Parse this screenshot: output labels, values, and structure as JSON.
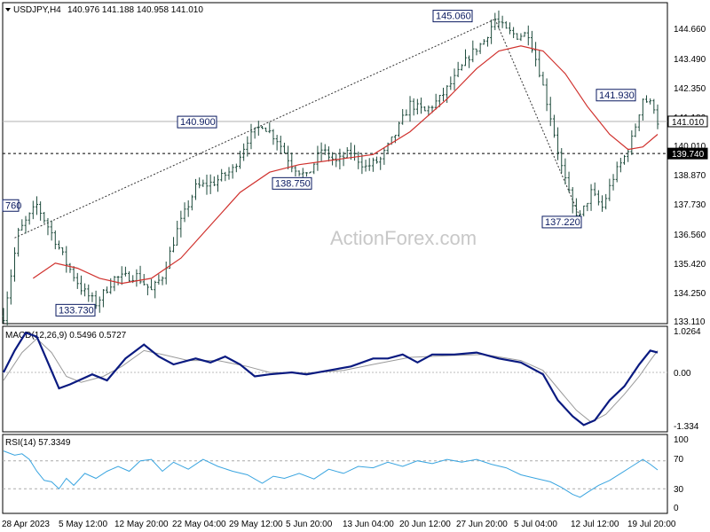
{
  "header": {
    "symbol": "USDJPY,H4",
    "ohlc": "140.976 141.188 140.958 141.010"
  },
  "watermark": "ActionForex.com",
  "colors": {
    "candle": "#1e4b3c",
    "ma": "#d0312d",
    "macd_main": "#0a1a80",
    "macd_signal": "#9a9a9a",
    "rsi": "#3aa5e0",
    "trend": "#333333",
    "label_border": "#0a1a60"
  },
  "chart_data": [
    {
      "type": "candlestick",
      "title": "USDJPY,H4",
      "ylim": [
        133.11,
        145.6
      ],
      "y_ticks": [
        "144.660",
        "143.490",
        "142.350",
        "141.180",
        "140.010",
        "138.870",
        "137.730",
        "136.560",
        "135.420",
        "134.250",
        "133.110"
      ],
      "x_ticks": [
        "28 Apr 2023",
        "5 May 12:00",
        "12 May 20:00",
        "22 May 04:00",
        "29 May 12:00",
        "5 Jun 20:00",
        "13 Jun 04:00",
        "20 Jun 12:00",
        "27 Jun 20:00",
        "5 Jul 04:00",
        "12 Jul 12:00",
        "19 Jul 20:00"
      ],
      "price_path": [
        [
          0,
          133.3
        ],
        [
          4,
          136.6
        ],
        [
          9,
          137.7
        ],
        [
          14,
          136.3
        ],
        [
          17,
          135.4
        ],
        [
          21,
          134.4
        ],
        [
          25,
          133.8
        ],
        [
          30,
          134.8
        ],
        [
          36,
          134.9
        ],
        [
          40,
          134.3
        ],
        [
          43,
          134.9
        ],
        [
          47,
          136.7
        ],
        [
          52,
          138.4
        ],
        [
          57,
          138.6
        ],
        [
          62,
          139.1
        ],
        [
          66,
          140.3
        ],
        [
          70,
          140.9
        ],
        [
          74,
          140.3
        ],
        [
          78,
          139.3
        ],
        [
          82,
          138.8
        ],
        [
          86,
          139.9
        ],
        [
          90,
          139.4
        ],
        [
          94,
          139.8
        ],
        [
          98,
          139.2
        ],
        [
          102,
          139.5
        ],
        [
          106,
          140.5
        ],
        [
          110,
          141.7
        ],
        [
          114,
          141.4
        ],
        [
          118,
          141.9
        ],
        [
          122,
          142.7
        ],
        [
          126,
          143.6
        ],
        [
          130,
          144.2
        ],
        [
          133,
          145.06
        ],
        [
          136,
          144.6
        ],
        [
          139,
          144.4
        ],
        [
          142,
          144.5
        ],
        [
          145,
          143.0
        ],
        [
          148,
          141.2
        ],
        [
          151,
          139.2
        ],
        [
          154,
          137.6
        ],
        [
          156,
          137.22
        ],
        [
          159,
          138.2
        ],
        [
          162,
          137.6
        ],
        [
          165,
          138.8
        ],
        [
          168,
          139.6
        ],
        [
          170,
          140.3
        ],
        [
          173,
          141.93
        ],
        [
          176,
          141.6
        ],
        [
          177,
          141.01
        ]
      ],
      "ma_path": [
        [
          8,
          134.8
        ],
        [
          14,
          135.4
        ],
        [
          20,
          135.2
        ],
        [
          26,
          134.8
        ],
        [
          32,
          134.6
        ],
        [
          40,
          134.8
        ],
        [
          48,
          135.6
        ],
        [
          56,
          136.9
        ],
        [
          64,
          138.2
        ],
        [
          72,
          139.0
        ],
        [
          80,
          139.3
        ],
        [
          90,
          139.5
        ],
        [
          100,
          139.7
        ],
        [
          110,
          140.6
        ],
        [
          120,
          141.9
        ],
        [
          128,
          143.1
        ],
        [
          134,
          143.8
        ],
        [
          140,
          144.0
        ],
        [
          146,
          143.8
        ],
        [
          152,
          142.9
        ],
        [
          158,
          141.6
        ],
        [
          164,
          140.5
        ],
        [
          169,
          139.9
        ],
        [
          173,
          140.0
        ],
        [
          177,
          140.5
        ]
      ],
      "annotations": [
        "140.900",
        "133.730",
        "138.750",
        "145.060",
        "137.220",
        "141.930",
        "760"
      ],
      "hline_current": "141.010",
      "hline_level": "139.740"
    },
    {
      "type": "line",
      "title": "MACD(12,26,9) 0.5496 0.5727",
      "y_ticks": [
        "1.0264",
        "0.00",
        "-1.334"
      ],
      "ylim": [
        -1.334,
        1.0264
      ],
      "macd_path": [
        [
          0,
          0.0
        ],
        [
          3,
          0.55
        ],
        [
          6,
          1.0
        ],
        [
          9,
          0.9
        ],
        [
          12,
          0.25
        ],
        [
          15,
          -0.4
        ],
        [
          18,
          -0.3
        ],
        [
          24,
          -0.05
        ],
        [
          28,
          -0.2
        ],
        [
          33,
          0.35
        ],
        [
          38,
          0.7
        ],
        [
          42,
          0.4
        ],
        [
          46,
          0.2
        ],
        [
          52,
          0.35
        ],
        [
          56,
          0.25
        ],
        [
          60,
          0.4
        ],
        [
          64,
          0.2
        ],
        [
          68,
          -0.1
        ],
        [
          72,
          -0.05
        ],
        [
          78,
          0.0
        ],
        [
          82,
          -0.05
        ],
        [
          88,
          0.05
        ],
        [
          94,
          0.15
        ],
        [
          100,
          0.35
        ],
        [
          104,
          0.35
        ],
        [
          108,
          0.45
        ],
        [
          112,
          0.25
        ],
        [
          116,
          0.45
        ],
        [
          122,
          0.45
        ],
        [
          128,
          0.5
        ],
        [
          134,
          0.35
        ],
        [
          140,
          0.25
        ],
        [
          146,
          -0.05
        ],
        [
          150,
          -0.7
        ],
        [
          154,
          -1.1
        ],
        [
          157,
          -1.32
        ],
        [
          160,
          -1.2
        ],
        [
          164,
          -0.7
        ],
        [
          168,
          -0.35
        ],
        [
          172,
          0.2
        ],
        [
          175,
          0.55
        ],
        [
          177,
          0.5
        ]
      ],
      "signal_path": [
        [
          0,
          -0.2
        ],
        [
          5,
          0.5
        ],
        [
          9,
          0.85
        ],
        [
          13,
          0.5
        ],
        [
          17,
          -0.1
        ],
        [
          21,
          -0.25
        ],
        [
          27,
          -0.1
        ],
        [
          32,
          0.15
        ],
        [
          38,
          0.55
        ],
        [
          43,
          0.45
        ],
        [
          50,
          0.3
        ],
        [
          58,
          0.3
        ],
        [
          66,
          0.15
        ],
        [
          72,
          0.0
        ],
        [
          82,
          -0.02
        ],
        [
          92,
          0.05
        ],
        [
          100,
          0.2
        ],
        [
          110,
          0.38
        ],
        [
          120,
          0.42
        ],
        [
          130,
          0.45
        ],
        [
          140,
          0.3
        ],
        [
          146,
          0.05
        ],
        [
          150,
          -0.4
        ],
        [
          155,
          -0.95
        ],
        [
          159,
          -1.25
        ],
        [
          163,
          -1.05
        ],
        [
          168,
          -0.55
        ],
        [
          172,
          -0.1
        ],
        [
          175,
          0.3
        ],
        [
          177,
          0.55
        ]
      ]
    },
    {
      "type": "line",
      "title": "RSI(14) 57.3349",
      "y_ticks": [
        "100",
        "70",
        "30",
        "0"
      ],
      "ylim": [
        0,
        100
      ],
      "rsi_path": [
        [
          0,
          84
        ],
        [
          3,
          78
        ],
        [
          5,
          80
        ],
        [
          7,
          72
        ],
        [
          9,
          55
        ],
        [
          11,
          42
        ],
        [
          13,
          40
        ],
        [
          15,
          30
        ],
        [
          17,
          45
        ],
        [
          19,
          35
        ],
        [
          22,
          52
        ],
        [
          25,
          45
        ],
        [
          28,
          55
        ],
        [
          31,
          62
        ],
        [
          34,
          55
        ],
        [
          37,
          70
        ],
        [
          40,
          72
        ],
        [
          43,
          55
        ],
        [
          46,
          68
        ],
        [
          50,
          58
        ],
        [
          54,
          72
        ],
        [
          58,
          62
        ],
        [
          62,
          55
        ],
        [
          66,
          50
        ],
        [
          70,
          38
        ],
        [
          73,
          48
        ],
        [
          76,
          45
        ],
        [
          80,
          52
        ],
        [
          84,
          44
        ],
        [
          88,
          58
        ],
        [
          92,
          52
        ],
        [
          96,
          62
        ],
        [
          100,
          60
        ],
        [
          104,
          68
        ],
        [
          108,
          62
        ],
        [
          112,
          70
        ],
        [
          116,
          66
        ],
        [
          120,
          72
        ],
        [
          124,
          68
        ],
        [
          128,
          72
        ],
        [
          132,
          65
        ],
        [
          136,
          60
        ],
        [
          140,
          50
        ],
        [
          144,
          45
        ],
        [
          148,
          40
        ],
        [
          151,
          32
        ],
        [
          154,
          22
        ],
        [
          156,
          18
        ],
        [
          158,
          25
        ],
        [
          161,
          35
        ],
        [
          164,
          42
        ],
        [
          167,
          52
        ],
        [
          170,
          62
        ],
        [
          173,
          72
        ],
        [
          175,
          65
        ],
        [
          177,
          57
        ]
      ]
    }
  ]
}
